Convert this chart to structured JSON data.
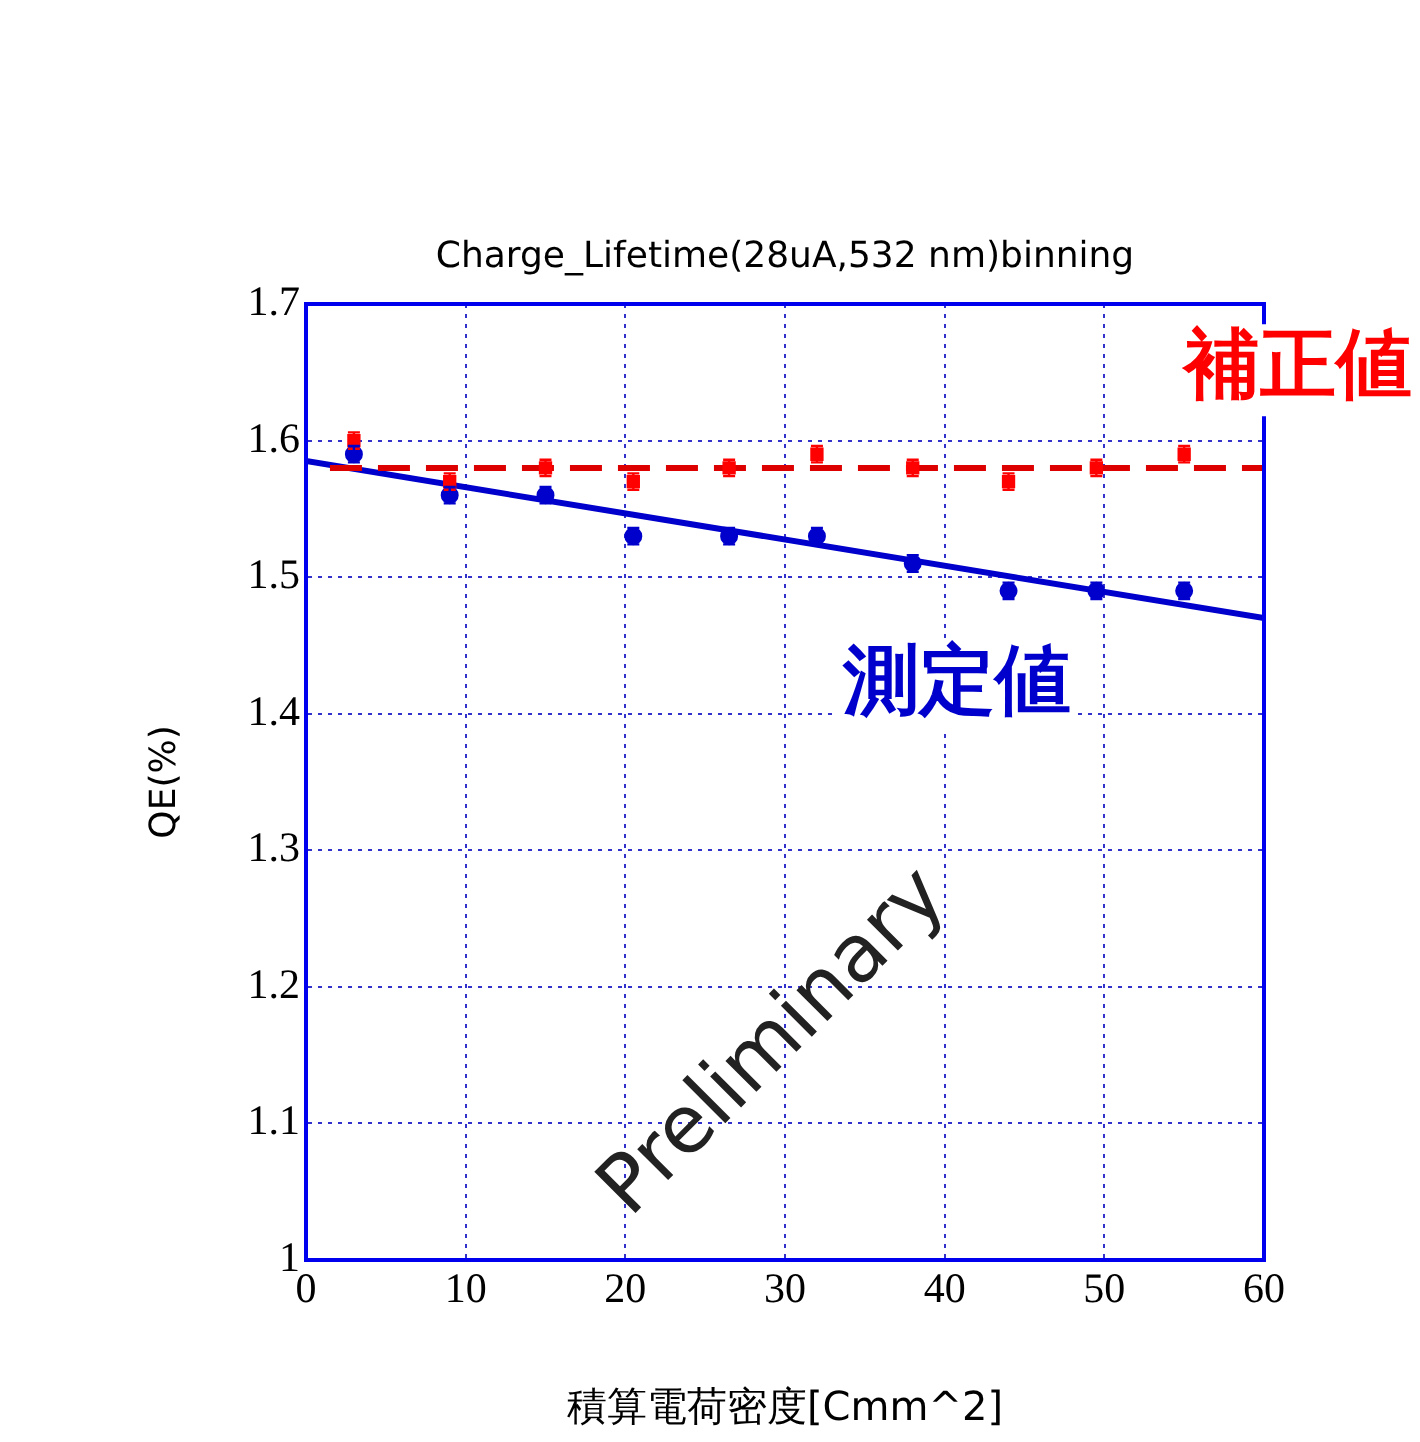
{
  "chart_data": {
    "type": "scatter",
    "title": "Charge_Lifetime(28uA,532 nm)binning",
    "xlabel": "積算電荷密度[Cmm^2]",
    "ylabel": "QE(%)",
    "xlim": [
      0,
      60
    ],
    "xticks": [
      0,
      10,
      20,
      30,
      40,
      50,
      60
    ],
    "ylim": [
      1,
      1.7
    ],
    "yticks": [
      1,
      1.1,
      1.2,
      1.3,
      1.4,
      1.5,
      1.6,
      1.7
    ],
    "grid": true,
    "legend": false,
    "series": [
      {
        "name": "補正値",
        "color": "#ff0000",
        "marker": "square",
        "x": [
          3,
          9,
          15,
          20.5,
          26.5,
          32,
          38,
          44,
          49.5,
          55
        ],
        "values": [
          1.6,
          1.57,
          1.58,
          1.57,
          1.58,
          1.59,
          1.58,
          1.57,
          1.58,
          1.59
        ],
        "errors": [
          0.006,
          0.006,
          0.006,
          0.006,
          0.006,
          0.006,
          0.006,
          0.006,
          0.006,
          0.006
        ]
      },
      {
        "name": "測定値",
        "color": "#0000cc",
        "marker": "circle",
        "x": [
          3,
          9,
          15,
          20.5,
          26.5,
          32,
          38,
          44,
          49.5,
          55
        ],
        "values": [
          1.59,
          1.56,
          1.56,
          1.53,
          1.53,
          1.53,
          1.51,
          1.49,
          1.49,
          1.49
        ],
        "errors": [
          0.006,
          0.006,
          0.006,
          0.006,
          0.006,
          0.006,
          0.006,
          0.006,
          0.006,
          0.006
        ]
      },
      {
        "type": "line",
        "color": "#dd0000",
        "line_style": "dashed",
        "marker": "none",
        "x": [
          1.5,
          60
        ],
        "values": [
          1.58,
          1.58
        ]
      },
      {
        "type": "line",
        "color": "#0000cc",
        "line_style": "solid",
        "marker": "none",
        "x": [
          0,
          60
        ],
        "values": [
          1.585,
          1.47
        ]
      }
    ],
    "annotations": [
      "Preliminary"
    ]
  }
}
